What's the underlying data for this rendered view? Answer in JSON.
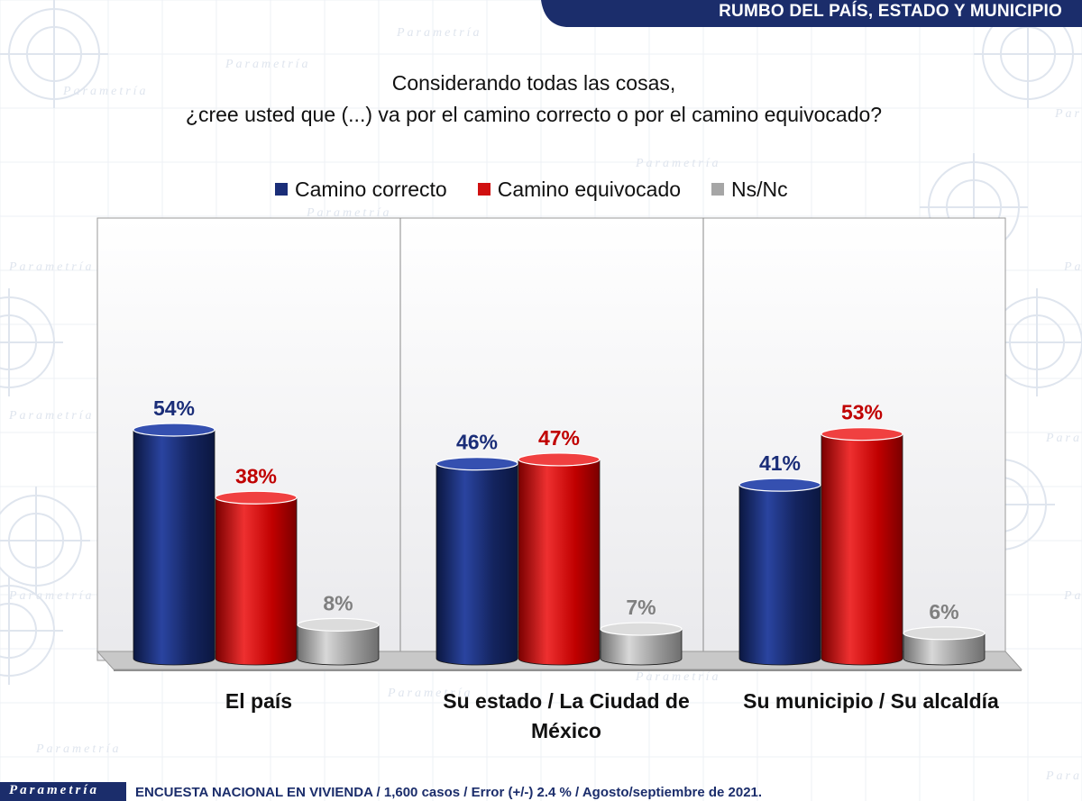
{
  "header": {
    "title": "RUMBO DEL PAÍS, ESTADO Y MUNICIPIO"
  },
  "question": {
    "line1": "Considerando todas las cosas,",
    "line2": "¿cree usted que (...) va por el camino correcto o por el camino equivocado?"
  },
  "watermark": "Parametría",
  "footer": {
    "logo": "Parametría",
    "text": "ENCUESTA NACIONAL EN VIVIENDA / 1,600 casos / Error (+/-) 2.4 % / Agosto/septiembre de 2021."
  },
  "colors": {
    "navy": "#1b2d6b",
    "series": [
      "#1a2d78",
      "#d01010",
      "#a6a6a6"
    ],
    "labels": [
      "#1a2d78",
      "#c00000",
      "#7f7f7f"
    ]
  },
  "chart_data": {
    "type": "bar",
    "title": "",
    "categories": [
      [
        "El país"
      ],
      [
        "Su estado / La Ciudad de",
        "México"
      ],
      [
        "Su municipio / Su alcaldía"
      ]
    ],
    "series": [
      {
        "name": "Camino correcto",
        "values": [
          54,
          46,
          41
        ]
      },
      {
        "name": "Camino equivocado",
        "values": [
          38,
          47,
          53
        ]
      },
      {
        "name": "Ns/Nc",
        "values": [
          8,
          7,
          6
        ]
      }
    ],
    "value_suffix": "%",
    "ylim": [
      0,
      100
    ],
    "grid": false,
    "legend_position": "top"
  }
}
